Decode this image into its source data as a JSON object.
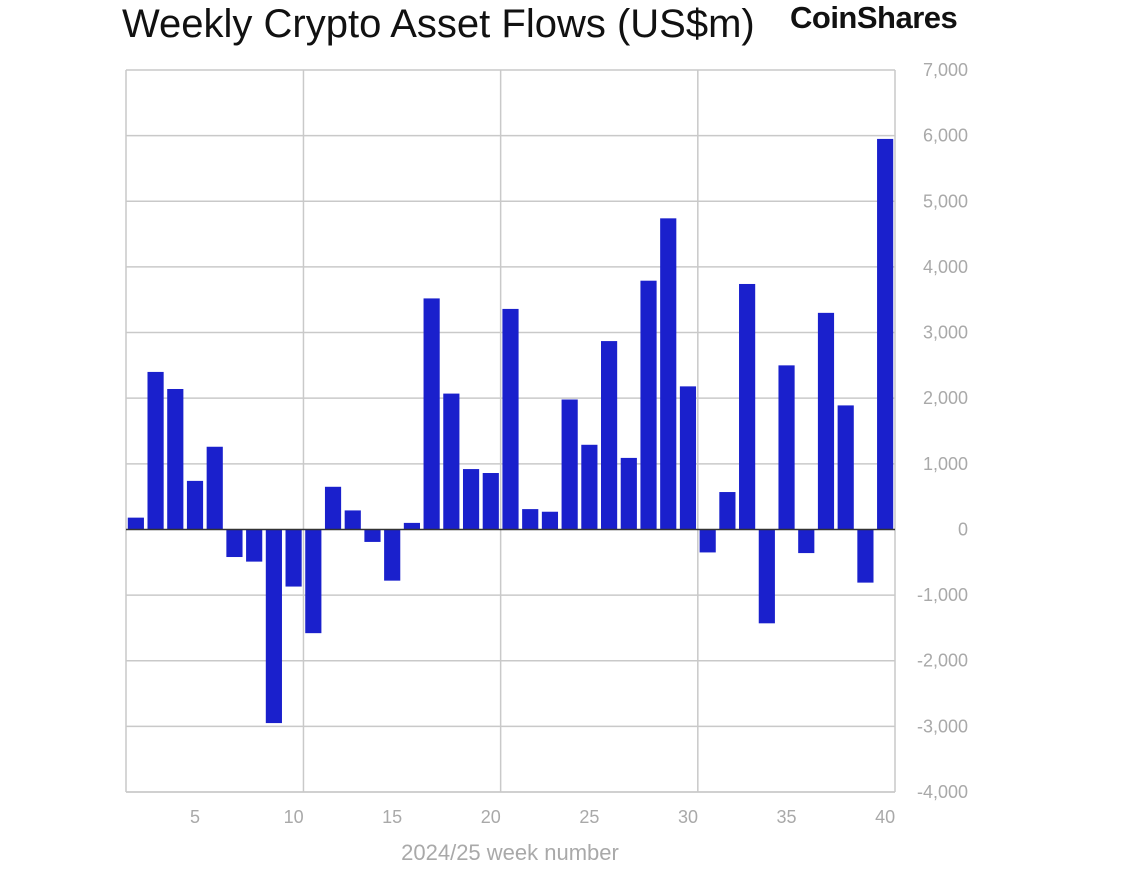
{
  "brand": {
    "logo_text": "CoinShares"
  },
  "colors": {
    "bar": "#1a20cc",
    "grid": "#c9c9c9",
    "zero_line": "#333333",
    "tick": "#a9a9a9"
  },
  "chart_data": {
    "type": "bar",
    "title": "Weekly Crypto Asset Flows (US$m)",
    "xlabel": "2024/25 week number",
    "ylabel": "",
    "grid": true,
    "ylim": [
      -4000,
      7000
    ],
    "yticks": [
      7000,
      6000,
      5000,
      4000,
      3000,
      2000,
      1000,
      0,
      -1000,
      -2000,
      -3000,
      -4000
    ],
    "ytick_labels": [
      "7,000",
      "6,000",
      "5,000",
      "4,000",
      "3,000",
      "2,000",
      "1,000",
      "0",
      "-1,000",
      "-2,000",
      "-3,000",
      "-4,000"
    ],
    "xticks": [
      5,
      10,
      15,
      20,
      25,
      30,
      35,
      40
    ],
    "xtick_labels": [
      "5",
      "10",
      "15",
      "20",
      "25",
      "30",
      "35",
      "40"
    ],
    "x_range": [
      1.5,
      40.5
    ],
    "vertical_grid_at": [
      10.5,
      20.5,
      30.5
    ],
    "categories": [
      2,
      3,
      4,
      5,
      6,
      7,
      8,
      9,
      10,
      11,
      12,
      13,
      14,
      15,
      16,
      17,
      18,
      19,
      20,
      21,
      22,
      23,
      24,
      25,
      26,
      27,
      28,
      29,
      30,
      31,
      32,
      33,
      34,
      35,
      36,
      37,
      38,
      39,
      40
    ],
    "values": [
      180,
      2400,
      2140,
      740,
      1260,
      -420,
      -490,
      -2950,
      -870,
      -1580,
      650,
      290,
      -190,
      -780,
      100,
      3520,
      2070,
      920,
      860,
      3360,
      310,
      270,
      1980,
      1290,
      2870,
      1090,
      3790,
      4740,
      2180,
      -350,
      570,
      3740,
      -1430,
      2500,
      -360,
      3300,
      1890,
      -810,
      5950
    ]
  }
}
